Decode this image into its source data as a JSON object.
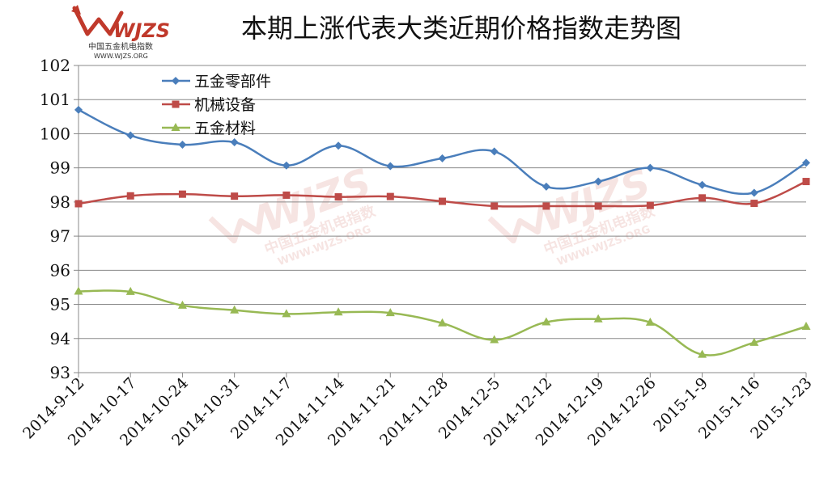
{
  "logo": {
    "brand": "WJZS",
    "subtitle": "中国五金机电指数",
    "url": "WWW.WJZS.ORG"
  },
  "chart_data": {
    "type": "line",
    "title": "本期上涨代表大类近期价格指数走势图",
    "xlabel": "",
    "ylabel": "",
    "ylim": [
      93,
      102
    ],
    "y_ticks": [
      93,
      94,
      95,
      96,
      97,
      98,
      99,
      100,
      101,
      102
    ],
    "grid": "horizontal",
    "legend_position": "top-left",
    "categories": [
      "2014-9-12",
      "2014-10-17",
      "2014-10-24",
      "2014-10-31",
      "2014-11-7",
      "2014-11-14",
      "2014-11-21",
      "2014-11-28",
      "2014-12-5",
      "2014-12-12",
      "2014-12-19",
      "2014-12-26",
      "2015-1-9",
      "2015-1-16",
      "2015-1-23"
    ],
    "series": [
      {
        "name": "五金零部件",
        "color": "#4a7ebb",
        "marker": "diamond",
        "values": [
          100.7,
          99.95,
          99.68,
          99.75,
          99.07,
          99.65,
          99.05,
          99.28,
          99.48,
          98.45,
          98.6,
          99.0,
          98.5,
          98.27,
          99.15
        ]
      },
      {
        "name": "机械设备",
        "color": "#be4b48",
        "marker": "square",
        "values": [
          97.95,
          98.18,
          98.23,
          98.17,
          98.2,
          98.15,
          98.16,
          98.02,
          97.88,
          97.88,
          97.88,
          97.9,
          98.12,
          97.96,
          98.6
        ]
      },
      {
        "name": "五金材料",
        "color": "#98b954",
        "marker": "triangle",
        "values": [
          95.38,
          95.37,
          94.97,
          94.83,
          94.72,
          94.77,
          94.75,
          94.45,
          93.96,
          94.48,
          94.57,
          94.47,
          93.53,
          93.88,
          94.35
        ]
      }
    ]
  }
}
